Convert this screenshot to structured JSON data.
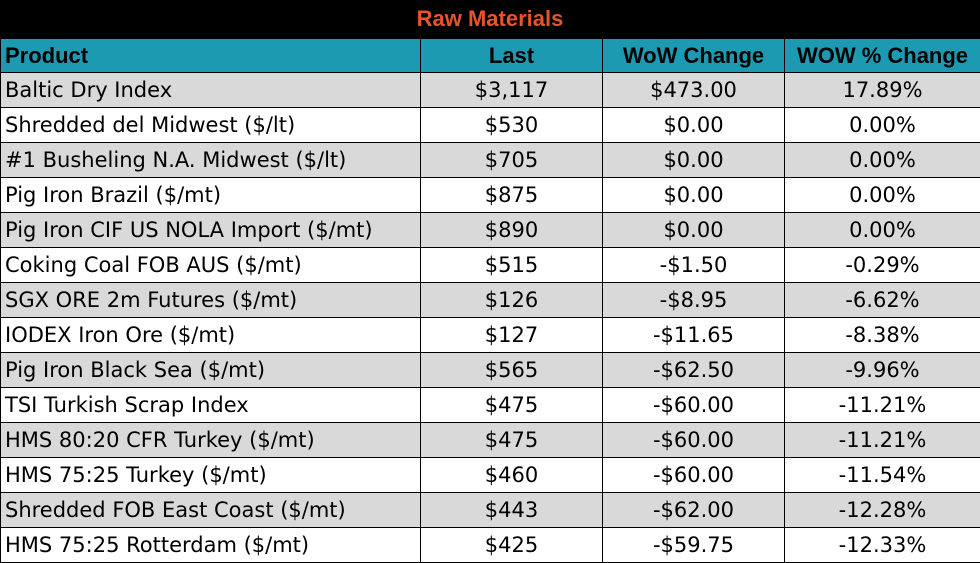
{
  "title": "Raw Materials",
  "headers": {
    "product": "Product",
    "last": "Last",
    "wow_change": "WoW Change",
    "wow_pct_change": "WOW % Change"
  },
  "rows": [
    {
      "product": "Baltic Dry Index",
      "last": "$3,117",
      "wow_change": "$473.00",
      "wow_pct": "17.89%"
    },
    {
      "product": "Shredded del  Midwest ($/lt)",
      "last": "$530",
      "wow_change": "$0.00",
      "wow_pct": "0.00%"
    },
    {
      "product": "#1 Busheling N.A. Midwest ($/lt)",
      "last": "$705",
      "wow_change": "$0.00",
      "wow_pct": "0.00%"
    },
    {
      "product": "Pig Iron Brazil ($/mt)",
      "last": "$875",
      "wow_change": "$0.00",
      "wow_pct": "0.00%"
    },
    {
      "product": "Pig Iron CIF US NOLA Import ($/mt)",
      "last": "$890",
      "wow_change": "$0.00",
      "wow_pct": "0.00%"
    },
    {
      "product": "Coking Coal FOB AUS ($/mt)",
      "last": "$515",
      "wow_change": "-$1.50",
      "wow_pct": "-0.29%"
    },
    {
      "product": "SGX ORE 2m Futures ($/mt)",
      "last": "$126",
      "wow_change": "-$8.95",
      "wow_pct": "-6.62%"
    },
    {
      "product": "IODEX  Iron Ore ($/mt)",
      "last": "$127",
      "wow_change": "-$11.65",
      "wow_pct": "-8.38%"
    },
    {
      "product": "Pig Iron Black Sea ($/mt)",
      "last": "$565",
      "wow_change": "-$62.50",
      "wow_pct": "-9.96%"
    },
    {
      "product": "TSI Turkish Scrap Index",
      "last": "$475",
      "wow_change": "-$60.00",
      "wow_pct": "-11.21%"
    },
    {
      "product": "HMS 80:20 CFR Turkey ($/mt)",
      "last": "$475",
      "wow_change": "-$60.00",
      "wow_pct": "-11.21%"
    },
    {
      "product": "HMS 75:25 Turkey ($/mt)",
      "last": "$460",
      "wow_change": "-$60.00",
      "wow_pct": "-11.54%"
    },
    {
      "product": "Shredded FOB East Coast ($/mt)",
      "last": "$443",
      "wow_change": "-$62.00",
      "wow_pct": "-12.28%"
    },
    {
      "product": "HMS 75:25 Rotterdam ($/mt)",
      "last": "$425",
      "wow_change": "-$59.75",
      "wow_pct": "-12.33%"
    }
  ],
  "colors": {
    "title_background": "#000000",
    "title_text": "#e8542a",
    "header_background": "#1c9ab1",
    "shaded_row": "#d9d9d9",
    "plain_row": "#ffffff"
  }
}
